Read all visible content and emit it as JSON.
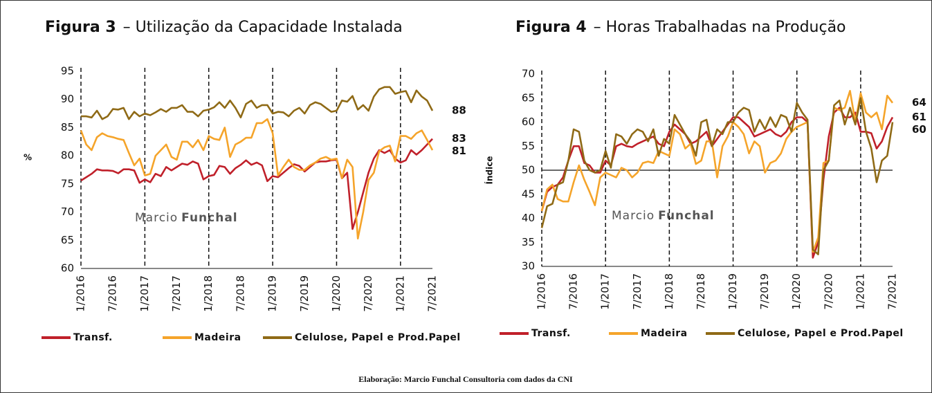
{
  "chart_data": [
    {
      "type": "line",
      "figure": "Figura 3",
      "title": "– Utilização da Capacidade Instalada",
      "y_label": "%",
      "categories": [
        "1/2016",
        null,
        null,
        null,
        null,
        null,
        "7/2016",
        null,
        null,
        null,
        null,
        null,
        "1/2017",
        null,
        null,
        null,
        null,
        null,
        "7/2017",
        null,
        null,
        null,
        null,
        null,
        "1/2018",
        null,
        null,
        null,
        null,
        null,
        "7/2018",
        null,
        null,
        null,
        null,
        null,
        "1/2019",
        null,
        null,
        null,
        null,
        null,
        "7/2019",
        null,
        null,
        null,
        null,
        null,
        "1/2020",
        null,
        null,
        null,
        null,
        null,
        "7/2020",
        null,
        null,
        null,
        null,
        null,
        "1/2021",
        null,
        null,
        null,
        null,
        null,
        "7/2021"
      ],
      "ylim": [
        60,
        95
      ],
      "yticks": [
        60,
        65,
        70,
        75,
        80,
        85,
        90,
        95
      ],
      "series": [
        {
          "name": "Transf.",
          "color": "#c0202a",
          "values": [
            75.6,
            76.2,
            76.8,
            77.6,
            77.4,
            77.4,
            77.3,
            76.9,
            77.6,
            77.6,
            77.4,
            75.2,
            75.8,
            75.3,
            76.8,
            76.4,
            78,
            77.4,
            78,
            78.6,
            78.4,
            79,
            78.6,
            75.8,
            76.4,
            76.6,
            78.2,
            78,
            76.8,
            77.8,
            78.4,
            79.2,
            78.4,
            78.8,
            78.3,
            75.5,
            76.4,
            76.2,
            77,
            77.8,
            78.5,
            78.2,
            77.2,
            78,
            78.8,
            79,
            79,
            79.2,
            79.3,
            76,
            77,
            67,
            70,
            73.5,
            77,
            79.5,
            81,
            80.5,
            81,
            79.5,
            78.8,
            79.2,
            81,
            80.2,
            81,
            82,
            83
          ]
        },
        {
          "name": "Madeira",
          "color": "#f5a42a",
          "values": [
            84.5,
            82,
            81,
            83.3,
            84,
            83.5,
            83.3,
            83,
            82.8,
            80.5,
            78.3,
            79.5,
            76.5,
            76.8,
            80,
            81,
            82,
            79.8,
            79.3,
            82.5,
            82.5,
            81.5,
            82.8,
            81,
            83.5,
            83,
            82.8,
            85,
            79.8,
            82,
            82.5,
            83.2,
            83.2,
            85.8,
            85.8,
            86.5,
            84,
            76.5,
            78,
            79.3,
            78,
            77.5,
            77.5,
            78.3,
            78.8,
            79.5,
            79.8,
            79.3,
            79.5,
            76,
            79.3,
            78,
            65.3,
            70,
            75.7,
            77,
            80.8,
            81.5,
            81.8,
            79,
            83.5,
            83.5,
            83,
            84,
            84.5,
            82.8,
            81
          ]
        },
        {
          "name": "Celulose, Papel e Prod.Papel",
          "color": "#8f6a16",
          "values": [
            87,
            87,
            86.8,
            88,
            86.5,
            87,
            88.3,
            88.2,
            88.5,
            86.5,
            87.8,
            87,
            87.5,
            87.2,
            87.7,
            88.3,
            87.8,
            88.5,
            88.5,
            89,
            87.8,
            87.8,
            87,
            88,
            88.2,
            88.6,
            89.5,
            88.5,
            89.8,
            88.5,
            86.8,
            89.2,
            89.8,
            88.5,
            89,
            89,
            87.5,
            87.8,
            87.7,
            87,
            88,
            88.5,
            87.5,
            89,
            89.5,
            89.2,
            88.5,
            87.8,
            88,
            89.8,
            89.6,
            90.6,
            88.2,
            89,
            88,
            90.5,
            91.8,
            92.2,
            92.2,
            91,
            91.3,
            91.5,
            89.5,
            91.6,
            90.5,
            89.8,
            88
          ]
        }
      ],
      "watermark": {
        "first": "Marcio",
        "last": "Funchal"
      }
    },
    {
      "type": "line",
      "figure": "Figura 4",
      "title": "– Horas Trabalhadas na Produção",
      "y_label": "Índice",
      "categories": [
        "1/2016",
        null,
        null,
        null,
        null,
        null,
        "7/2016",
        null,
        null,
        null,
        null,
        null,
        "1/2017",
        null,
        null,
        null,
        null,
        null,
        "7/2017",
        null,
        null,
        null,
        null,
        null,
        "1/2018",
        null,
        null,
        null,
        null,
        null,
        "7/2018",
        null,
        null,
        null,
        null,
        null,
        "1/2019",
        null,
        null,
        null,
        null,
        null,
        "7/2019",
        null,
        null,
        null,
        null,
        null,
        "1/2020",
        null,
        null,
        null,
        null,
        null,
        "7/2020",
        null,
        null,
        null,
        null,
        null,
        "1/2021",
        null,
        null,
        null,
        null,
        null,
        "7/2021"
      ],
      "ylim": [
        30,
        70
      ],
      "yticks": [
        30,
        35,
        40,
        45,
        50,
        55,
        60,
        65,
        70
      ],
      "hline": 50,
      "series": [
        {
          "name": "Transf.",
          "color": "#c0202a",
          "values": [
            41.5,
            45.5,
            46.5,
            47,
            48.5,
            52,
            55,
            55,
            51.5,
            51,
            49.5,
            49.5,
            52,
            51,
            55,
            55.5,
            55,
            54.8,
            55.5,
            56,
            56.5,
            57,
            55.5,
            55,
            58,
            59.5,
            58.5,
            57.5,
            55.5,
            56,
            57,
            58,
            55,
            56.5,
            58,
            59.5,
            61,
            61,
            60,
            59,
            57,
            57.5,
            58,
            58.5,
            57.5,
            57,
            58,
            60,
            61,
            61,
            60,
            31.8,
            35,
            48,
            57,
            62,
            63,
            61,
            61,
            62,
            58,
            58,
            57.7,
            54.5,
            56,
            59,
            61
          ]
        },
        {
          "name": "Madeira",
          "color": "#f5a42a",
          "values": [
            41.5,
            46,
            47,
            44,
            43.5,
            43.5,
            47.5,
            51,
            48,
            45.5,
            42.7,
            48.5,
            49.5,
            49,
            48.5,
            50.5,
            50,
            48.5,
            49.5,
            51.5,
            51.8,
            51.5,
            54,
            53.5,
            53,
            58.5,
            57.5,
            54.5,
            55.5,
            51.3,
            52,
            56,
            56,
            48.5,
            55,
            57,
            60,
            59,
            57.5,
            53.5,
            56,
            55,
            49.5,
            51.5,
            52,
            53.5,
            56.5,
            58,
            59,
            59.5,
            60,
            33,
            36,
            51.5,
            52,
            63,
            62.5,
            63,
            66.5,
            60,
            66,
            62,
            61,
            62,
            58.5,
            65.5,
            64
          ]
        },
        {
          "name": "Celulose, Papel e Prod.Papel",
          "color": "#8f6a16",
          "values": [
            38,
            42.5,
            43,
            47,
            47.5,
            52,
            58.5,
            58,
            52,
            50,
            49.5,
            50,
            54,
            50.5,
            57.5,
            57,
            55.5,
            57.5,
            58.5,
            58,
            56,
            58.5,
            53,
            56.5,
            55.5,
            61.5,
            59.5,
            57.5,
            56,
            53,
            60,
            60.5,
            55,
            58.5,
            57.5,
            60,
            60,
            62,
            63,
            62.5,
            58,
            60.5,
            58.5,
            61,
            59,
            61.5,
            61,
            58,
            64,
            62,
            60.5,
            33.5,
            32.5,
            50,
            52,
            63.5,
            64.5,
            59.5,
            63,
            59.5,
            65,
            58,
            54.5,
            47.5,
            52,
            53,
            60
          ]
        }
      ],
      "watermark": {
        "first": "Marcio",
        "last": "Funchal"
      }
    }
  ],
  "footer": "Elaboração: Marcio Funchal Consultoria com dados da CNI"
}
